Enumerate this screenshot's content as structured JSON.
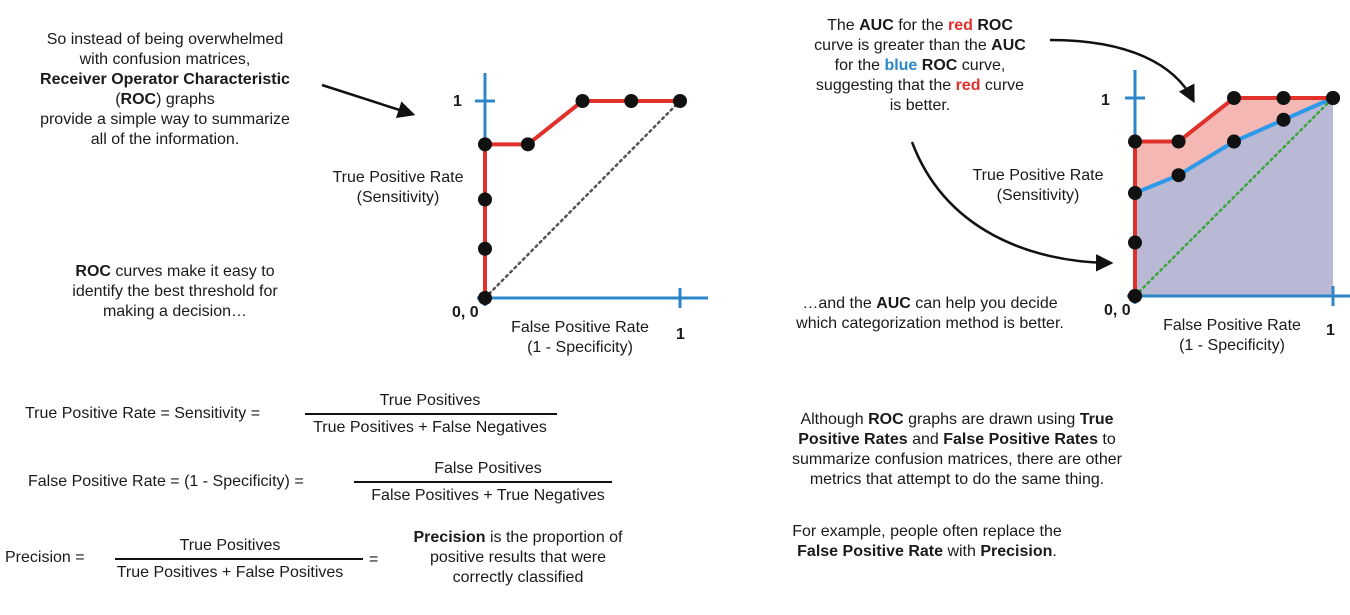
{
  "left_panel": {
    "intro_line1": "So instead of being overwhelmed",
    "intro_line2": "with confusion matrices,",
    "intro_bold": "Receiver Operator Characteristic",
    "intro_paren_open": "(",
    "intro_roc": "ROC",
    "intro_paren_close": ") graphs",
    "intro_line4": "provide a simple way to summarize",
    "intro_line5": "all of the information.",
    "roc_bold": "ROC",
    "roc_text1": " curves make it easy to",
    "roc_text2": "identify the best threshold for",
    "roc_text3": "making a decision…"
  },
  "right_panel": {
    "auc_the": "The ",
    "auc_bold1": "AUC",
    "auc_for_the": " for the ",
    "auc_red": "red",
    "auc_roc1": "ROC",
    "auc_line2a": "curve is greater than the ",
    "auc_bold2": "AUC",
    "auc_line3a": "for the ",
    "auc_blue": "blue",
    "auc_roc2": "ROC",
    "auc_line3b": " curve,",
    "auc_line4a": "suggesting that the ",
    "auc_red2": "red",
    "auc_line4b": " curve",
    "auc_line5": "is better.",
    "decide_a": "…and the ",
    "decide_auc": "AUC",
    "decide_b": " can help you decide",
    "decide_line2": "which categorization method is better.",
    "although_a": "Although ",
    "although_roc": "ROC",
    "although_b": " graphs are drawn using ",
    "although_tpr": "True",
    "although_tpr2": "Positive Rates",
    "although_and": " and ",
    "although_fpr": "False Positive Rates",
    "although_to": " to",
    "although_line3": "summarize confusion matrices, there are other",
    "although_line4": "metrics that attempt to do the same thing.",
    "example_line1": "For example, people often replace the",
    "example_fpr": "False Positive Rate",
    "example_with": " with ",
    "example_precision": "Precision",
    "example_dot": "."
  },
  "formulas": {
    "tpr_lhs": "True Positive Rate = Sensitivity =",
    "tpr_num": "True Positives",
    "tpr_den": "True Positives + False Negatives",
    "fpr_lhs": "False Positive Rate = (1 - Specificity) =",
    "fpr_num": "False Positives",
    "fpr_den": "False Positives + True Negatives",
    "prec_lhs": "Precision =",
    "prec_num": "True Positives",
    "prec_den": "True Positives + False Positives",
    "prec_eq": "=",
    "prec_bold": "Precision",
    "prec_desc1": " is the proportion of",
    "prec_desc2": "positive results that were",
    "prec_desc3": "correctly classified"
  },
  "chart_data": [
    {
      "type": "line",
      "title": "",
      "xlabel": "False Positive Rate\n(1 - Specificity)",
      "ylabel": "True Positive Rate\n(Sensitivity)",
      "xlabel_line1": "False Positive Rate",
      "xlabel_line2": "(1 - Specificity)",
      "ylabel_line1": "True Positive Rate",
      "ylabel_line2": "(Sensitivity)",
      "origin_label": "0, 0",
      "x_tick_label": "1",
      "y_tick_label": "1",
      "xlim": [
        0,
        1
      ],
      "ylim": [
        0,
        1
      ],
      "series": [
        {
          "color": "#e0312b",
          "x": [
            0,
            0,
            0,
            0,
            0.22,
            0.5,
            0.75,
            1.0
          ],
          "y": [
            0,
            0.25,
            0.5,
            0.78,
            0.78,
            1.0,
            1.0,
            1.0
          ]
        }
      ],
      "diagonal": {
        "style": "dotted",
        "color": "#555555"
      }
    },
    {
      "type": "area",
      "title": "",
      "xlabel": "False Positive Rate\n(1 - Specificity)",
      "ylabel": "True Positive Rate\n(Sensitivity)",
      "xlabel_line1": "False Positive Rate",
      "xlabel_line2": "(1 - Specificity)",
      "ylabel_line1": "True Positive Rate",
      "ylabel_line2": "(Sensitivity)",
      "origin_label": "0, 0",
      "x_tick_label": "1",
      "y_tick_label": "1",
      "xlim": [
        0,
        1
      ],
      "ylim": [
        0,
        1
      ],
      "series": [
        {
          "color": "#e0312b",
          "fill": "#f4b7b4",
          "x": [
            0,
            0,
            0.22,
            0.5,
            0.75,
            1.0
          ],
          "y": [
            0,
            0.78,
            0.78,
            1.0,
            1.0,
            1.0
          ]
        },
        {
          "color": "#2c9ae8",
          "fill": "#b9b9d6",
          "x": [
            0,
            0,
            0,
            0.22,
            0.5,
            0.75,
            1.0
          ],
          "y": [
            0,
            0.27,
            0.52,
            0.61,
            0.78,
            0.89,
            1.0
          ]
        }
      ],
      "diagonal": {
        "style": "dotted",
        "color": "#3aa53a"
      }
    }
  ]
}
